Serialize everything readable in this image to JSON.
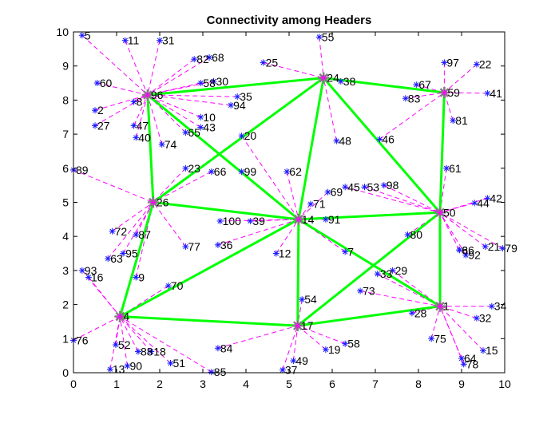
{
  "chart_data": {
    "type": "scatter",
    "title": "Connectivity among Headers",
    "xlabel": "",
    "ylabel": "",
    "xlim": [
      0,
      10
    ],
    "ylim": [
      0,
      10
    ],
    "xticks": [
      "0",
      "1",
      "2",
      "3",
      "4",
      "5",
      "6",
      "7",
      "8",
      "9",
      "10"
    ],
    "yticks": [
      "0",
      "1",
      "2",
      "3",
      "4",
      "5",
      "6",
      "7",
      "8",
      "9",
      "10"
    ],
    "grid": false,
    "legend": "none",
    "colors": {
      "marker": "#1a1aff",
      "header": "#808080",
      "member_link": "#ff00ff",
      "header_link": "#00ff00"
    },
    "headers": [
      {
        "id": "4",
        "x": 1.08,
        "y": 1.65
      },
      {
        "id": "14",
        "x": 5.22,
        "y": 4.5
      },
      {
        "id": "17",
        "x": 5.2,
        "y": 1.38
      },
      {
        "id": "24",
        "x": 5.8,
        "y": 8.65
      },
      {
        "id": "26",
        "x": 1.85,
        "y": 5.0
      },
      {
        "id": "50",
        "x": 8.5,
        "y": 4.7
      },
      {
        "id": "59",
        "x": 8.6,
        "y": 8.22
      },
      {
        "id": "96",
        "x": 1.72,
        "y": 8.15
      },
      {
        "id": "1",
        "x": 8.5,
        "y": 1.95
      }
    ],
    "header_links": [
      [
        "96",
        "24"
      ],
      [
        "24",
        "59"
      ],
      [
        "59",
        "50"
      ],
      [
        "50",
        "1"
      ],
      [
        "1",
        "17"
      ],
      [
        "17",
        "4"
      ],
      [
        "4",
        "26"
      ],
      [
        "26",
        "96"
      ],
      [
        "96",
        "14"
      ],
      [
        "26",
        "14"
      ],
      [
        "14",
        "24"
      ],
      [
        "24",
        "50"
      ],
      [
        "14",
        "50"
      ],
      [
        "14",
        "1"
      ],
      [
        "14",
        "17"
      ],
      [
        "14",
        "4"
      ],
      [
        "26",
        "24"
      ],
      [
        "50",
        "17"
      ]
    ],
    "members": [
      {
        "id": "5",
        "x": 0.2,
        "y": 9.9,
        "h": "96"
      },
      {
        "id": "11",
        "x": 1.2,
        "y": 9.75,
        "h": "96"
      },
      {
        "id": "31",
        "x": 2.0,
        "y": 9.75,
        "h": "96"
      },
      {
        "id": "82",
        "x": 2.8,
        "y": 9.2,
        "h": "96"
      },
      {
        "id": "68",
        "x": 3.15,
        "y": 9.25,
        "h": "96"
      },
      {
        "id": "60",
        "x": 0.55,
        "y": 8.5,
        "h": "96"
      },
      {
        "id": "58",
        "x": 2.95,
        "y": 8.5,
        "h": "96"
      },
      {
        "id": "30",
        "x": 3.25,
        "y": 8.55,
        "h": "96"
      },
      {
        "id": "8",
        "x": 1.4,
        "y": 7.95,
        "h": "96"
      },
      {
        "id": "2",
        "x": 0.5,
        "y": 7.7,
        "h": "96"
      },
      {
        "id": "27",
        "x": 0.5,
        "y": 7.25,
        "h": "96"
      },
      {
        "id": "47",
        "x": 1.4,
        "y": 7.25,
        "h": "96"
      },
      {
        "id": "40",
        "x": 1.45,
        "y": 6.9,
        "h": "96"
      },
      {
        "id": "74",
        "x": 2.05,
        "y": 6.7,
        "h": "96"
      },
      {
        "id": "10",
        "x": 2.95,
        "y": 7.5,
        "h": "96"
      },
      {
        "id": "43",
        "x": 2.95,
        "y": 7.2,
        "h": "96"
      },
      {
        "id": "65",
        "x": 2.6,
        "y": 7.05,
        "h": "96"
      },
      {
        "id": "35",
        "x": 3.8,
        "y": 8.1,
        "h": "96"
      },
      {
        "id": "94",
        "x": 3.65,
        "y": 7.85,
        "h": "96"
      },
      {
        "id": "89",
        "x": 0.0,
        "y": 5.95,
        "h": "26"
      },
      {
        "id": "23",
        "x": 2.6,
        "y": 6.0,
        "h": "26"
      },
      {
        "id": "66",
        "x": 3.2,
        "y": 5.9,
        "h": "26"
      },
      {
        "id": "72",
        "x": 0.9,
        "y": 4.15,
        "h": "26"
      },
      {
        "id": "87",
        "x": 1.45,
        "y": 4.05,
        "h": "26"
      },
      {
        "id": "95",
        "x": 1.15,
        "y": 3.5,
        "h": "26"
      },
      {
        "id": "63",
        "x": 0.8,
        "y": 3.35,
        "h": "26"
      },
      {
        "id": "77",
        "x": 2.6,
        "y": 3.7,
        "h": "26"
      },
      {
        "id": "9",
        "x": 1.45,
        "y": 2.8,
        "h": "26"
      },
      {
        "id": "93",
        "x": 0.2,
        "y": 3.0,
        "h": "4"
      },
      {
        "id": "16",
        "x": 0.35,
        "y": 2.8,
        "h": "4"
      },
      {
        "id": "70",
        "x": 2.2,
        "y": 2.55,
        "h": "4"
      },
      {
        "id": "76",
        "x": 0.0,
        "y": 0.95,
        "h": "4"
      },
      {
        "id": "52",
        "x": 0.98,
        "y": 0.82,
        "h": "4"
      },
      {
        "id": "88",
        "x": 1.5,
        "y": 0.62,
        "h": "4"
      },
      {
        "id": "18",
        "x": 1.8,
        "y": 0.62,
        "h": "4"
      },
      {
        "id": "51",
        "x": 2.25,
        "y": 0.28,
        "h": "4"
      },
      {
        "id": "90",
        "x": 1.25,
        "y": 0.2,
        "h": "4"
      },
      {
        "id": "13",
        "x": 0.85,
        "y": 0.1,
        "h": "4"
      },
      {
        "id": "85",
        "x": 3.2,
        "y": 0.02,
        "h": "4"
      },
      {
        "id": "84",
        "x": 3.35,
        "y": 0.72,
        "h": "17"
      },
      {
        "id": "37",
        "x": 4.85,
        "y": 0.08,
        "h": "17"
      },
      {
        "id": "49",
        "x": 5.1,
        "y": 0.35,
        "h": "17"
      },
      {
        "id": "19",
        "x": 5.85,
        "y": 0.68,
        "h": "17"
      },
      {
        "id": "58b",
        "x": 6.3,
        "y": 0.85,
        "h": "17",
        "label": "58"
      },
      {
        "id": "54",
        "x": 5.3,
        "y": 2.15,
        "h": "17"
      },
      {
        "id": "55",
        "x": 5.7,
        "y": 9.85,
        "h": "24"
      },
      {
        "id": "25",
        "x": 4.4,
        "y": 9.1,
        "h": "24"
      },
      {
        "id": "38",
        "x": 6.2,
        "y": 8.55,
        "h": "24"
      },
      {
        "id": "48",
        "x": 6.1,
        "y": 6.8,
        "h": "24"
      },
      {
        "id": "97",
        "x": 8.6,
        "y": 9.1,
        "h": "59"
      },
      {
        "id": "22",
        "x": 9.35,
        "y": 9.05,
        "h": "59"
      },
      {
        "id": "67",
        "x": 7.95,
        "y": 8.45,
        "h": "59"
      },
      {
        "id": "83",
        "x": 7.7,
        "y": 8.05,
        "h": "59"
      },
      {
        "id": "41",
        "x": 9.6,
        "y": 8.2,
        "h": "59"
      },
      {
        "id": "81",
        "x": 8.8,
        "y": 7.4,
        "h": "59"
      },
      {
        "id": "46",
        "x": 7.1,
        "y": 6.85,
        "h": "59"
      },
      {
        "id": "20",
        "x": 3.9,
        "y": 6.95,
        "h": "14"
      },
      {
        "id": "99",
        "x": 3.9,
        "y": 5.9,
        "h": "14"
      },
      {
        "id": "62",
        "x": 4.95,
        "y": 5.9,
        "h": "14"
      },
      {
        "id": "71",
        "x": 5.5,
        "y": 4.95,
        "h": "14"
      },
      {
        "id": "69",
        "x": 5.9,
        "y": 5.3,
        "h": "14"
      },
      {
        "id": "91",
        "x": 5.85,
        "y": 4.5,
        "h": "14"
      },
      {
        "id": "100",
        "x": 3.4,
        "y": 4.45,
        "h": "14"
      },
      {
        "id": "39",
        "x": 4.1,
        "y": 4.45,
        "h": "14"
      },
      {
        "id": "36",
        "x": 3.35,
        "y": 3.75,
        "h": "14"
      },
      {
        "id": "12",
        "x": 4.7,
        "y": 3.5,
        "h": "14"
      },
      {
        "id": "7",
        "x": 6.3,
        "y": 3.55,
        "h": "14"
      },
      {
        "id": "45",
        "x": 6.3,
        "y": 5.45,
        "h": "50"
      },
      {
        "id": "53",
        "x": 6.75,
        "y": 5.45,
        "h": "50"
      },
      {
        "id": "98",
        "x": 7.2,
        "y": 5.5,
        "h": "50"
      },
      {
        "id": "61",
        "x": 8.65,
        "y": 6.0,
        "h": "50"
      },
      {
        "id": "44",
        "x": 9.3,
        "y": 4.98,
        "h": "50"
      },
      {
        "id": "42",
        "x": 9.6,
        "y": 5.12,
        "h": "50"
      },
      {
        "id": "80",
        "x": 7.75,
        "y": 4.05,
        "h": "50"
      },
      {
        "id": "86",
        "x": 8.95,
        "y": 3.6,
        "h": "50"
      },
      {
        "id": "6",
        "x": 8.95,
        "y": 3.6,
        "h": "50"
      },
      {
        "id": "92",
        "x": 9.1,
        "y": 3.45,
        "h": "50"
      },
      {
        "id": "21",
        "x": 9.55,
        "y": 3.7,
        "h": "50"
      },
      {
        "id": "79",
        "x": 9.95,
        "y": 3.65,
        "h": "50"
      },
      {
        "id": "33",
        "x": 7.05,
        "y": 2.9,
        "h": "1"
      },
      {
        "id": "29",
        "x": 7.4,
        "y": 3.0,
        "h": "1"
      },
      {
        "id": "73",
        "x": 6.65,
        "y": 2.4,
        "h": "1"
      },
      {
        "id": "28",
        "x": 7.85,
        "y": 1.75,
        "h": "1"
      },
      {
        "id": "34",
        "x": 9.7,
        "y": 1.95,
        "h": "1"
      },
      {
        "id": "32",
        "x": 9.35,
        "y": 1.6,
        "h": "1"
      },
      {
        "id": "75",
        "x": 8.3,
        "y": 1.0,
        "h": "1"
      },
      {
        "id": "15",
        "x": 9.5,
        "y": 0.65,
        "h": "1"
      },
      {
        "id": "64",
        "x": 9.0,
        "y": 0.42,
        "h": "1"
      },
      {
        "id": "78",
        "x": 9.05,
        "y": 0.25,
        "h": "1"
      }
    ]
  }
}
